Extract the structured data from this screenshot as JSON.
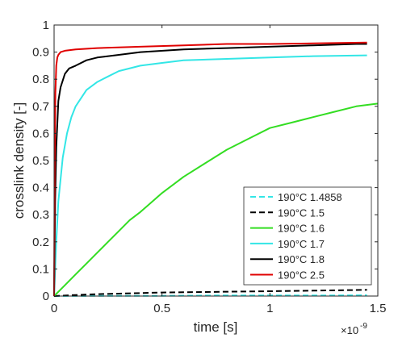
{
  "chart_data": {
    "type": "line",
    "title": "",
    "xlabel": "time [s]",
    "ylabel": "crosslink density [-]",
    "x_exponent_label": "×10",
    "x_exponent_power": "-9",
    "xlim": [
      0,
      1.5
    ],
    "ylim": [
      0,
      1
    ],
    "xticks": [
      0,
      0.5,
      1,
      1.5
    ],
    "xtick_labels": [
      "0",
      "0.5",
      "1",
      "1.5"
    ],
    "yticks": [
      0,
      0.1,
      0.2,
      0.3,
      0.4,
      0.5,
      0.6,
      0.7,
      0.8,
      0.9,
      1
    ],
    "ytick_labels": [
      "0",
      "0.1",
      "0.2",
      "0.3",
      "0.4",
      "0.5",
      "0.6",
      "0.7",
      "0.8",
      "0.9",
      "1"
    ],
    "grid": false,
    "box": true,
    "legend_position": "bottom-right",
    "series": [
      {
        "name": "190°C 1.4858",
        "color": "#33e6e6",
        "dash": "dashed",
        "x": [
          0,
          0.25,
          0.5,
          0.75,
          1.0,
          1.25,
          1.45
        ],
        "y": [
          0,
          0.001,
          0.001,
          0.002,
          0.002,
          0.002,
          0.003
        ]
      },
      {
        "name": "190°C 1.5",
        "color": "#000000",
        "dash": "dashed",
        "x": [
          0,
          0.1,
          0.2,
          0.3,
          0.4,
          0.5,
          0.6,
          0.7,
          0.8,
          0.9,
          1.0,
          1.1,
          1.2,
          1.3,
          1.45
        ],
        "y": [
          0,
          0.004,
          0.007,
          0.009,
          0.011,
          0.013,
          0.014,
          0.015,
          0.016,
          0.017,
          0.018,
          0.019,
          0.02,
          0.021,
          0.023
        ]
      },
      {
        "name": "190°C 1.6",
        "color": "#33dd22",
        "dash": "solid",
        "x": [
          0,
          0.05,
          0.1,
          0.15,
          0.2,
          0.25,
          0.3,
          0.35,
          0.4,
          0.5,
          0.6,
          0.7,
          0.8,
          0.9,
          1.0,
          1.1,
          1.2,
          1.3,
          1.4,
          1.5
        ],
        "y": [
          0,
          0.04,
          0.08,
          0.12,
          0.16,
          0.2,
          0.24,
          0.28,
          0.31,
          0.38,
          0.44,
          0.49,
          0.54,
          0.58,
          0.62,
          0.64,
          0.66,
          0.68,
          0.7,
          0.71
        ]
      },
      {
        "name": "190°C 1.7",
        "color": "#33e6e6",
        "dash": "solid",
        "x": [
          0,
          0.01,
          0.02,
          0.04,
          0.06,
          0.08,
          0.1,
          0.15,
          0.2,
          0.25,
          0.3,
          0.4,
          0.5,
          0.6,
          0.8,
          1.0,
          1.2,
          1.45
        ],
        "y": [
          0,
          0.2,
          0.35,
          0.51,
          0.6,
          0.66,
          0.7,
          0.76,
          0.79,
          0.81,
          0.83,
          0.85,
          0.86,
          0.87,
          0.875,
          0.88,
          0.885,
          0.888
        ]
      },
      {
        "name": "190°C 1.8",
        "color": "#000000",
        "dash": "solid",
        "x": [
          0,
          0.005,
          0.01,
          0.02,
          0.03,
          0.05,
          0.07,
          0.1,
          0.15,
          0.2,
          0.3,
          0.4,
          0.6,
          0.8,
          1.0,
          1.2,
          1.4,
          1.45
        ],
        "y": [
          0,
          0.35,
          0.55,
          0.72,
          0.77,
          0.82,
          0.84,
          0.85,
          0.87,
          0.88,
          0.89,
          0.9,
          0.91,
          0.915,
          0.92,
          0.925,
          0.93,
          0.93
        ]
      },
      {
        "name": "190°C 2.5",
        "color": "#e00000",
        "dash": "solid",
        "x": [
          0,
          0.003,
          0.006,
          0.01,
          0.015,
          0.02,
          0.03,
          0.05,
          0.1,
          0.2,
          0.4,
          0.6,
          0.8,
          1.0,
          1.2,
          1.45
        ],
        "y": [
          0,
          0.5,
          0.75,
          0.85,
          0.88,
          0.89,
          0.9,
          0.905,
          0.91,
          0.915,
          0.92,
          0.925,
          0.93,
          0.93,
          0.932,
          0.935
        ]
      }
    ]
  }
}
